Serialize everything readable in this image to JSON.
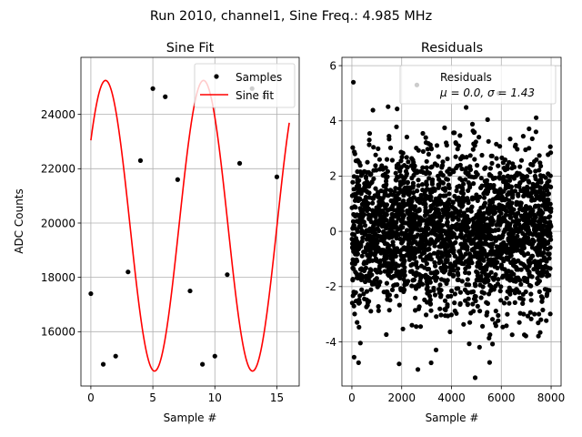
{
  "figure": {
    "suptitle": "Run 2010, channel1, Sine Freq.: 4.985 MHz"
  },
  "chart_data": [
    {
      "type": "scatter",
      "title": "Sine Fit",
      "xlabel": "Sample #",
      "ylabel": "ADC Counts",
      "xlim": [
        -0.8,
        16.8
      ],
      "ylim": [
        14000,
        26100
      ],
      "xticks": [
        0,
        5,
        10,
        15
      ],
      "yticks": [
        16000,
        18000,
        20000,
        22000,
        24000
      ],
      "grid": true,
      "legend_position": "top-right",
      "series": [
        {
          "name": "Samples",
          "kind": "points",
          "color": "#000000",
          "x": [
            0,
            1,
            2,
            3,
            4,
            5,
            6,
            7,
            8,
            9,
            10,
            11,
            12,
            13,
            14,
            15
          ],
          "y": [
            17400,
            14800,
            15100,
            18200,
            22300,
            24950,
            24650,
            21600,
            17500,
            14800,
            15100,
            18100,
            22200,
            24950,
            24650,
            21700
          ]
        },
        {
          "name": "Sine fit",
          "kind": "line",
          "color": "#ff0000",
          "fit": {
            "amplitude": 5350,
            "offset": 19900,
            "period": 7.9,
            "phase_zero_x": -0.79,
            "x_range": [
              0,
              16
            ]
          }
        }
      ]
    },
    {
      "type": "scatter",
      "title": "Residuals",
      "xlabel": "Sample #",
      "xlim": [
        -400,
        8400
      ],
      "ylim": [
        -5.6,
        6.3
      ],
      "xticks": [
        0,
        2000,
        4000,
        6000,
        8000
      ],
      "yticks": [
        -4,
        -2,
        0,
        2,
        4,
        6
      ],
      "grid": true,
      "legend_position": "top-right",
      "series": [
        {
          "name": "Residuals",
          "color": "#000000",
          "distribution": {
            "n_points": 8000,
            "mean": 0.0,
            "sigma": 1.43,
            "x_range": [
              0,
              8000
            ]
          },
          "highlight_points": [
            {
              "x": 2610,
              "y": 5.3
            },
            {
              "x": 4950,
              "y": -5.3
            },
            {
              "x": 60,
              "y": 5.4
            },
            {
              "x": 5900,
              "y": 5.0
            },
            {
              "x": 2650,
              "y": -5.0
            }
          ]
        }
      ],
      "legend": {
        "label": "Residuals",
        "stats_text": "μ = 0.0, σ = 1.43"
      }
    }
  ]
}
